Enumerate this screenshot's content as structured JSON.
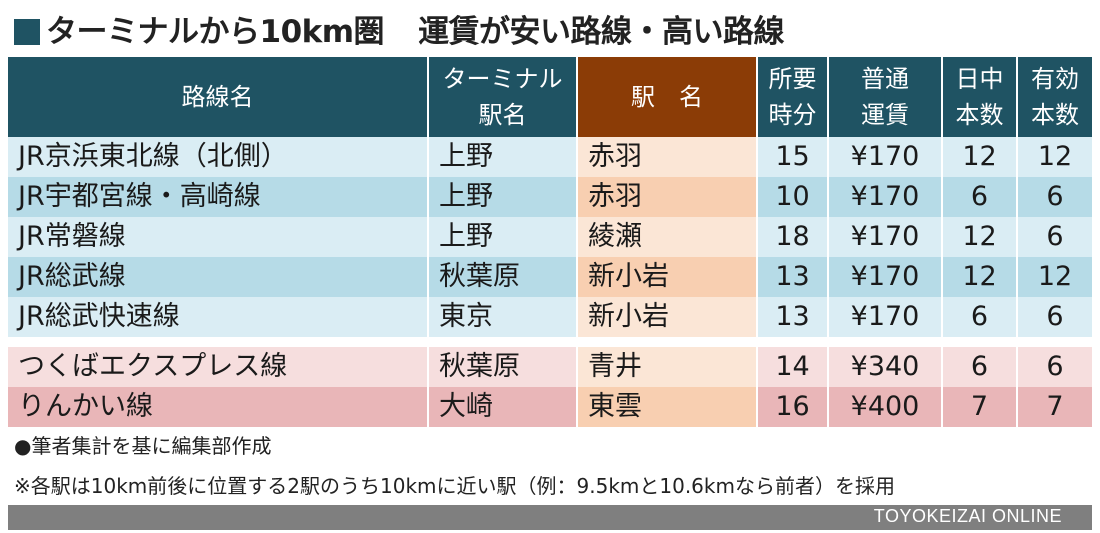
{
  "title": {
    "main": "ターミナルから10km圏",
    "sub": "運賃が安い路線・高い路線"
  },
  "table": {
    "headers": {
      "line_name": "路線名",
      "terminal_l1": "ターミナル",
      "terminal_l2": "駅名",
      "station": "駅　名",
      "time_l1": "所要",
      "time_l2": "時分",
      "fare_l1": "普通",
      "fare_l2": "運賃",
      "day_l1": "日中",
      "day_l2": "本数",
      "valid_l1": "有効",
      "valid_l2": "本数"
    },
    "rows": [
      {
        "line": "JR京浜東北線（北側）",
        "terminal": "上野",
        "station": "赤羽",
        "time": "15",
        "fare": "¥170",
        "day": "12",
        "valid": "12"
      },
      {
        "line": "JR宇都宮線・高崎線",
        "terminal": "上野",
        "station": "赤羽",
        "time": "10",
        "fare": "¥170",
        "day": "6",
        "valid": "6"
      },
      {
        "line": "JR常磐線",
        "terminal": "上野",
        "station": "綾瀬",
        "time": "18",
        "fare": "¥170",
        "day": "12",
        "valid": "6"
      },
      {
        "line": "JR総武線",
        "terminal": "秋葉原",
        "station": "新小岩",
        "time": "13",
        "fare": "¥170",
        "day": "12",
        "valid": "12"
      },
      {
        "line": "JR総武快速線",
        "terminal": "東京",
        "station": "新小岩",
        "time": "13",
        "fare": "¥170",
        "day": "6",
        "valid": "6"
      },
      {
        "line": "つくばエクスプレス線",
        "terminal": "秋葉原",
        "station": "青井",
        "time": "14",
        "fare": "¥340",
        "day": "6",
        "valid": "6"
      },
      {
        "line": "りんかい線",
        "terminal": "大崎",
        "station": "東雲",
        "time": "16",
        "fare": "¥400",
        "day": "7",
        "valid": "7"
      }
    ]
  },
  "notes": {
    "source": "●筆者集計を基に編集部作成",
    "method": "※各駅は10km前後に位置する2駅のうち10kmに近い駅（例：9.5kmと10.6kmなら前者）を採用"
  },
  "footer": {
    "credit": "TOYOKEIZAI ONLINE"
  },
  "colors": {
    "header": "#1f5363",
    "station_header": "#8b3c06",
    "jr_row_light": "#daedf4",
    "jr_row_dark": "#b6dbe7",
    "private_row_light": "#f6dede",
    "private_row_dark": "#e9b6b8"
  }
}
